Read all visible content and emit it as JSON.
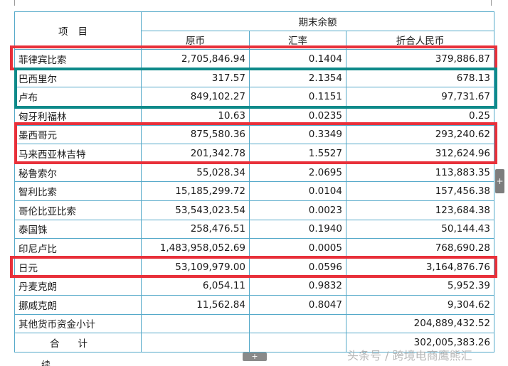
{
  "table": {
    "header": {
      "item": "项目",
      "group": "期末余额",
      "col_original": "原币",
      "col_rate": "汇率",
      "col_rmb": "折合人民币"
    },
    "rows": [
      {
        "name": "菲律宾比索",
        "original": "2,705,846.94",
        "rate": "0.1404",
        "rmb": "379,886.87"
      },
      {
        "name": "巴西里尔",
        "original": "317.57",
        "rate": "2.1354",
        "rmb": "678.13"
      },
      {
        "name": "卢布",
        "original": "849,102.27",
        "rate": "0.1151",
        "rmb": "97,731.67"
      },
      {
        "name": "匈牙利福林",
        "original": "10.63",
        "rate": "0.0235",
        "rmb": "0.25"
      },
      {
        "name": "墨西哥元",
        "original": "875,580.36",
        "rate": "0.3349",
        "rmb": "293,240.62"
      },
      {
        "name": "马来西亚林吉特",
        "original": "201,342.78",
        "rate": "1.5527",
        "rmb": "312,624.96"
      },
      {
        "name": "秘鲁索尔",
        "original": "55,028.34",
        "rate": "2.0695",
        "rmb": "113,883.35"
      },
      {
        "name": "智利比索",
        "original": "15,185,299.72",
        "rate": "0.0104",
        "rmb": "157,456.38"
      },
      {
        "name": "哥伦比亚比索",
        "original": "53,543,023.54",
        "rate": "0.0023",
        "rmb": "123,684.38"
      },
      {
        "name": "泰国铢",
        "original": "258,476.51",
        "rate": "0.1940",
        "rmb": "50,144.43"
      },
      {
        "name": "印尼卢比",
        "original": "1,483,958,052.69",
        "rate": "0.0005",
        "rmb": "768,690.28"
      },
      {
        "name": "日元",
        "original": "53,109,979.00",
        "rate": "0.0596",
        "rmb": "3,164,876.76"
      },
      {
        "name": "丹麦克朗",
        "original": "6,054.11",
        "rate": "0.9832",
        "rmb": "5,952.39"
      },
      {
        "name": "挪威克朗",
        "original": "11,562.84",
        "rate": "0.8047",
        "rmb": "9,304.62"
      },
      {
        "name": "其他货币资金小计",
        "original": "",
        "rate": "",
        "rmb": "204,889,432.52"
      }
    ],
    "total": {
      "label": "合计",
      "rmb": "302,005,383.26"
    }
  },
  "ui": {
    "side_tab_glyph": "+",
    "bottom_tab_glyph": "+",
    "overflow_text": "续"
  },
  "watermark": "头条号 / 跨境电商鹰熊汇",
  "colors": {
    "highlight_red": "#e8303a",
    "highlight_teal": "#0e8a8a",
    "grid_line": "#55a9c9"
  }
}
